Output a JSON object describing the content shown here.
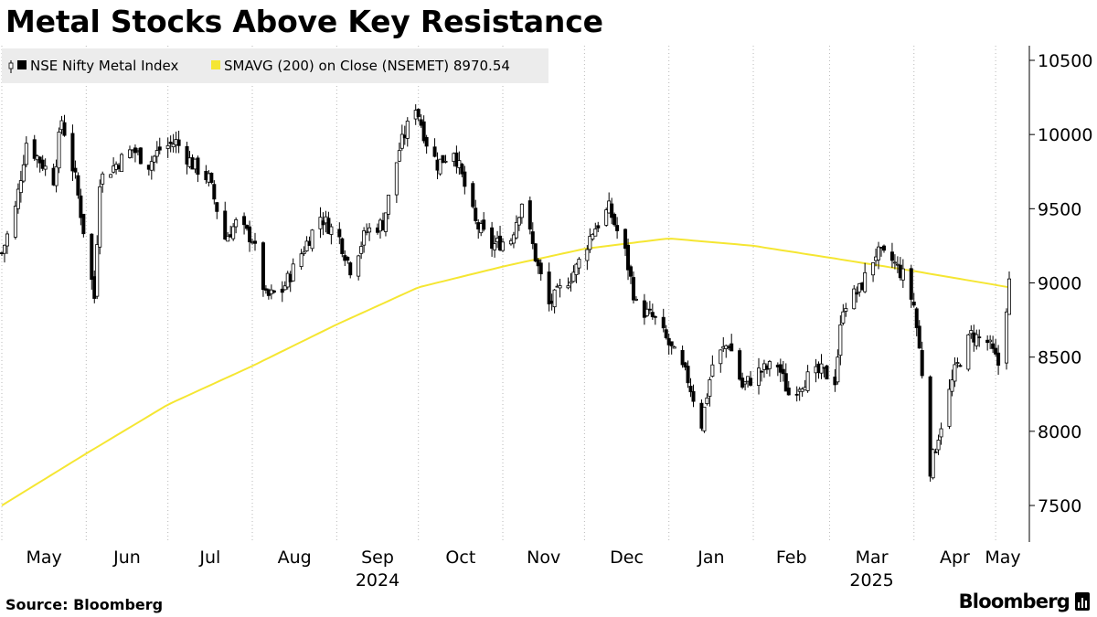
{
  "title": "Metal Stocks Above Key Resistance",
  "source": "Source: Bloomberg",
  "brand": "Bloomberg",
  "chart_data": {
    "type": "candlestick",
    "title": "Metal Stocks Above Key Resistance",
    "legend_placement": "top-left",
    "series": [
      {
        "name": "NSE Nifty Metal Index",
        "kind": "candlestick",
        "color": "#000000"
      },
      {
        "name": "SMAVG (200)  on Close (NSEMET) 8970.54",
        "kind": "line",
        "color": "#f5e632"
      }
    ],
    "x_range": [
      "2024-05-01",
      "2025-05-06"
    ],
    "ylim": [
      7250,
      10600
    ],
    "yticks": [
      7500,
      8000,
      8500,
      9000,
      9500,
      10000,
      10500
    ],
    "ytick_labels": [
      "7500",
      "8000",
      "8500",
      "9000",
      "9500",
      "10000",
      "10500"
    ],
    "xticks": [
      "May",
      "Jun",
      "Jul",
      "Aug",
      "Sep",
      "Oct",
      "Nov",
      "Dec",
      "Jan",
      "Feb",
      "Mar",
      "Apr",
      "May"
    ],
    "xtick_dates": [
      "2024-05-01",
      "2024-06-01",
      "2024-07-01",
      "2024-08-01",
      "2024-09-01",
      "2024-10-01",
      "2024-11-01",
      "2024-12-01",
      "2025-01-01",
      "2025-02-01",
      "2025-03-01",
      "2025-04-01",
      "2025-05-01"
    ],
    "year_labels": [
      {
        "label": "2024",
        "date": "2024-09-01"
      },
      {
        "label": "2025",
        "date": "2025-03-01"
      }
    ],
    "grid": "vertical dotted",
    "price_path": [
      [
        "2024-05-01",
        9200
      ],
      [
        "2024-05-06",
        9500
      ],
      [
        "2024-05-10",
        9950
      ],
      [
        "2024-05-14",
        9850
      ],
      [
        "2024-05-20",
        9700
      ],
      [
        "2024-05-23",
        10100
      ],
      [
        "2024-05-28",
        9700
      ],
      [
        "2024-06-04",
        8900
      ],
      [
        "2024-06-06",
        9700
      ],
      [
        "2024-06-12",
        9800
      ],
      [
        "2024-06-18",
        9900
      ],
      [
        "2024-06-24",
        9800
      ],
      [
        "2024-06-28",
        9900
      ],
      [
        "2024-07-04",
        9950
      ],
      [
        "2024-07-10",
        9800
      ],
      [
        "2024-07-16",
        9700
      ],
      [
        "2024-07-22",
        9300
      ],
      [
        "2024-07-26",
        9400
      ],
      [
        "2024-08-01",
        9300
      ],
      [
        "2024-08-06",
        8900
      ],
      [
        "2024-08-12",
        8950
      ],
      [
        "2024-08-19",
        9200
      ],
      [
        "2024-08-26",
        9450
      ],
      [
        "2024-09-02",
        9300
      ],
      [
        "2024-09-06",
        9100
      ],
      [
        "2024-09-12",
        9350
      ],
      [
        "2024-09-18",
        9400
      ],
      [
        "2024-09-24",
        9900
      ],
      [
        "2024-09-30",
        10200
      ],
      [
        "2024-10-04",
        9950
      ],
      [
        "2024-10-08",
        9800
      ],
      [
        "2024-10-14",
        9900
      ],
      [
        "2024-10-22",
        9400
      ],
      [
        "2024-10-28",
        9250
      ],
      [
        "2024-11-04",
        9300
      ],
      [
        "2024-11-08",
        9550
      ],
      [
        "2024-11-14",
        9100
      ],
      [
        "2024-11-18",
        8850
      ],
      [
        "2024-11-22",
        8950
      ],
      [
        "2024-11-28",
        9100
      ],
      [
        "2024-12-04",
        9350
      ],
      [
        "2024-12-10",
        9500
      ],
      [
        "2024-12-16",
        9200
      ],
      [
        "2024-12-20",
        8850
      ],
      [
        "2024-12-27",
        8750
      ],
      [
        "2025-01-02",
        8550
      ],
      [
        "2025-01-08",
        8350
      ],
      [
        "2025-01-13",
        8050
      ],
      [
        "2025-01-17",
        8450
      ],
      [
        "2025-01-23",
        8600
      ],
      [
        "2025-01-28",
        8300
      ],
      [
        "2025-02-03",
        8400
      ],
      [
        "2025-02-10",
        8450
      ],
      [
        "2025-02-14",
        8250
      ],
      [
        "2025-02-20",
        8350
      ],
      [
        "2025-02-26",
        8400
      ],
      [
        "2025-03-03",
        8350
      ],
      [
        "2025-03-06",
        8850
      ],
      [
        "2025-03-12",
        8950
      ],
      [
        "2025-03-18",
        9200
      ],
      [
        "2025-03-24",
        9150
      ],
      [
        "2025-03-28",
        9050
      ],
      [
        "2025-04-01",
        8850
      ],
      [
        "2025-04-04",
        8400
      ],
      [
        "2025-04-07",
        7750
      ],
      [
        "2025-04-11",
        8050
      ],
      [
        "2025-04-16",
        8400
      ],
      [
        "2025-04-22",
        8650
      ],
      [
        "2025-04-28",
        8600
      ],
      [
        "2025-05-02",
        8450
      ],
      [
        "2025-05-05",
        8850
      ],
      [
        "2025-05-06",
        9000
      ]
    ],
    "sma_path": [
      [
        "2024-05-01",
        7500
      ],
      [
        "2024-06-01",
        7850
      ],
      [
        "2024-07-01",
        8180
      ],
      [
        "2024-08-01",
        8440
      ],
      [
        "2024-09-01",
        8720
      ],
      [
        "2024-10-01",
        8970
      ],
      [
        "2024-11-01",
        9110
      ],
      [
        "2024-12-01",
        9230
      ],
      [
        "2025-01-01",
        9300
      ],
      [
        "2025-02-01",
        9250
      ],
      [
        "2025-03-01",
        9170
      ],
      [
        "2025-04-01",
        9080
      ],
      [
        "2025-05-06",
        8970.54
      ]
    ]
  }
}
